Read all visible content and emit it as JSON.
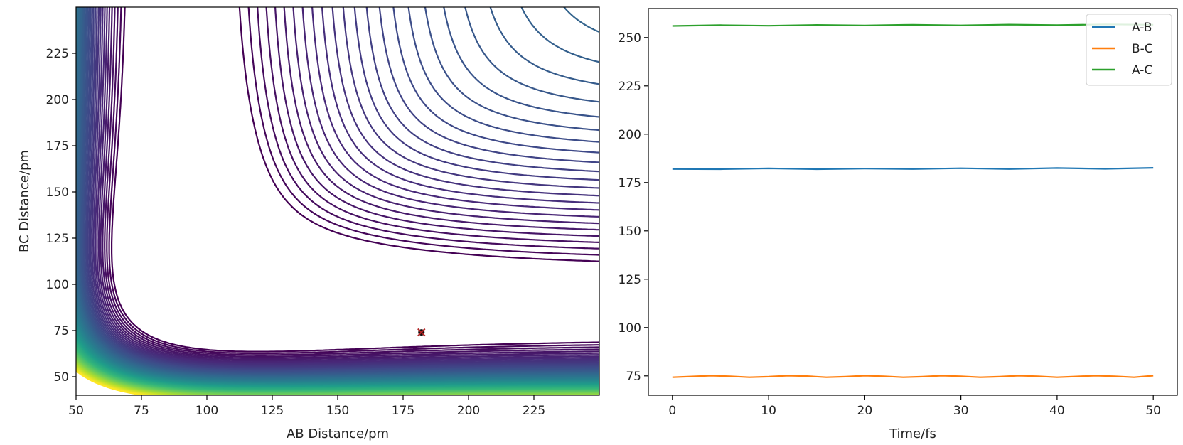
{
  "chart_data": [
    {
      "type": "contour",
      "xlabel": "AB Distance/pm",
      "ylabel": "BC Distance/pm",
      "xlim": [
        50,
        250
      ],
      "ylim": [
        40,
        250
      ],
      "xticks": [
        50,
        75,
        100,
        125,
        150,
        175,
        200,
        225
      ],
      "yticks": [
        50,
        75,
        100,
        125,
        150,
        175,
        200,
        225
      ],
      "colormap": "viridis",
      "potential": {
        "model": "LEPS",
        "D": 4.75,
        "a": 1.94,
        "r0": 74.1,
        "k": 0.18
      },
      "levels": {
        "min": -4.3,
        "max": 7.0,
        "count": 70
      },
      "marker": {
        "x": 182,
        "y": 74,
        "color": "#b22222",
        "symbol": "x"
      }
    },
    {
      "type": "line",
      "xlabel": "Time/fs",
      "ylabel": "",
      "xlim": [
        -2.5,
        52.5
      ],
      "ylim": [
        65,
        265
      ],
      "xticks": [
        0,
        10,
        20,
        30,
        40,
        50
      ],
      "yticks": [
        75,
        100,
        125,
        150,
        175,
        200,
        225,
        250
      ],
      "legend_position": "top-right",
      "series": [
        {
          "name": "A-B",
          "color": "#1f77b4",
          "x": [
            0,
            5,
            10,
            15,
            20,
            25,
            30,
            35,
            40,
            45,
            50
          ],
          "y": [
            182.0,
            181.9,
            182.3,
            181.9,
            182.2,
            182.0,
            182.4,
            182.0,
            182.5,
            182.1,
            182.6
          ]
        },
        {
          "name": "B-C",
          "color": "#ff7f0e",
          "x": [
            0,
            2,
            4,
            6,
            8,
            10,
            12,
            14,
            16,
            18,
            20,
            22,
            24,
            26,
            28,
            30,
            32,
            34,
            36,
            38,
            40,
            42,
            44,
            46,
            48,
            50
          ],
          "y": [
            74.3,
            74.7,
            75.1,
            74.8,
            74.3,
            74.6,
            75.1,
            74.9,
            74.3,
            74.6,
            75.1,
            74.8,
            74.3,
            74.6,
            75.1,
            74.8,
            74.3,
            74.6,
            75.1,
            74.8,
            74.3,
            74.7,
            75.1,
            74.8,
            74.3,
            75.1
          ]
        },
        {
          "name": "A-C",
          "color": "#2ca02c",
          "x": [
            0,
            5,
            10,
            15,
            20,
            25,
            30,
            35,
            40,
            45,
            50
          ],
          "y": [
            256.0,
            256.4,
            256.1,
            256.5,
            256.2,
            256.6,
            256.3,
            256.7,
            256.4,
            256.8,
            256.6
          ]
        }
      ]
    }
  ]
}
